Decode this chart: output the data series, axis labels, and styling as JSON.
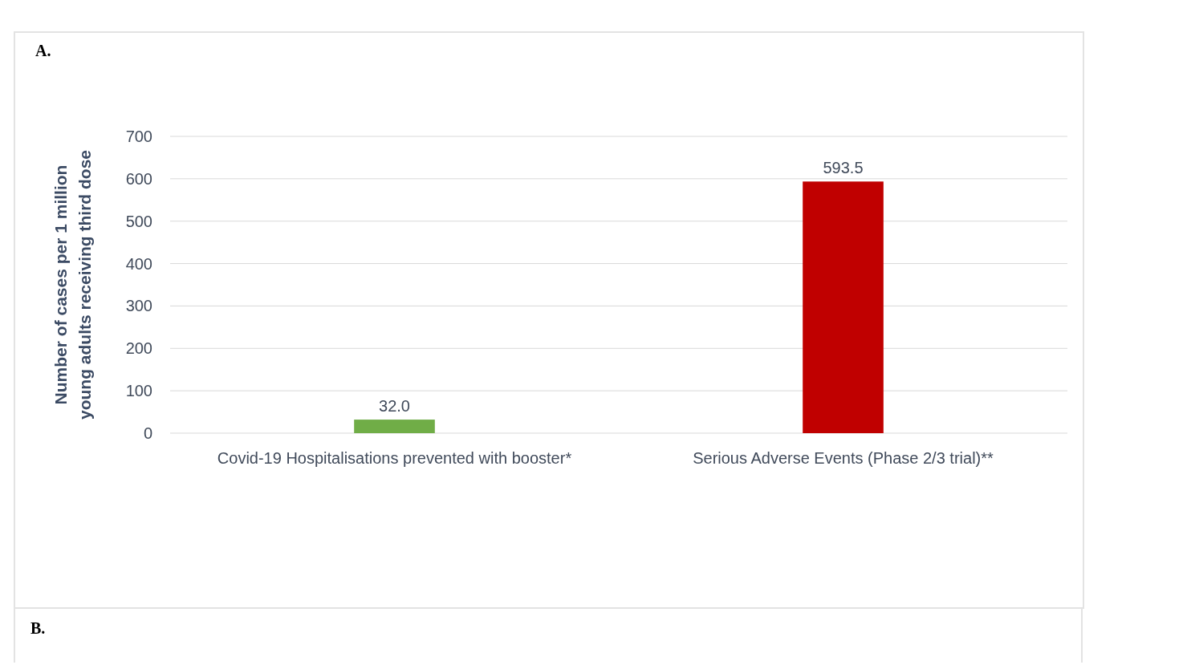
{
  "chart_data": {
    "type": "bar",
    "ylabel": "Number of cases per 1 million\nyoung adults receiving third dose",
    "categories": [
      "Covid-19 Hospitalisations prevented with booster*",
      "Serious Adverse Events (Phase 2/3 trial)**"
    ],
    "values": [
      32.0,
      593.5
    ],
    "colors": [
      "#70ad47",
      "#c00000"
    ],
    "value_labels": [
      "32.0",
      "593.5"
    ],
    "ylim": [
      0,
      700
    ],
    "yticks": [
      0,
      100,
      200,
      300,
      400,
      500,
      600,
      700
    ],
    "grid": "y",
    "annotations": [
      "A.",
      "B."
    ]
  }
}
